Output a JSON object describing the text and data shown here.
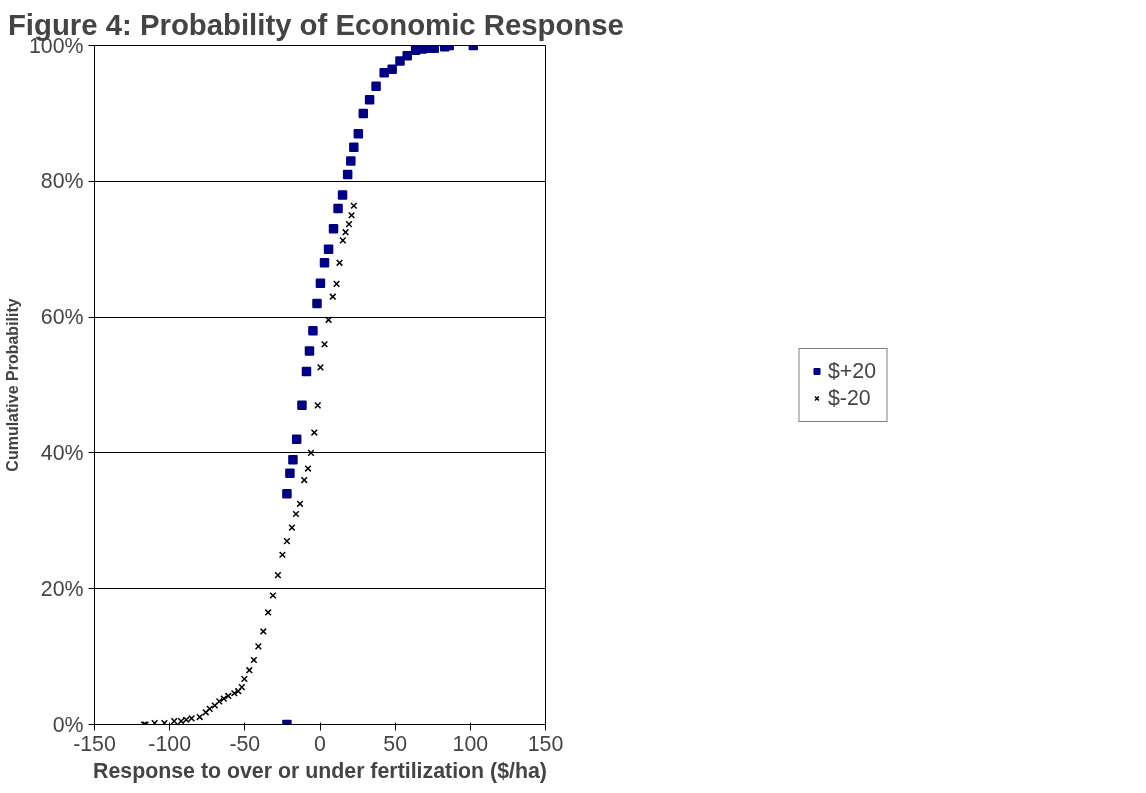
{
  "chart_data": {
    "type": "scatter",
    "title": "Figure 4:  Probability of Economic Response",
    "xlabel": "Response to over or under fertilization ($/ha)",
    "ylabel": "Cumulative Probability",
    "xlim": [
      -150,
      150
    ],
    "xticks": [
      -150,
      -100,
      -50,
      0,
      50,
      100,
      150
    ],
    "ylim": [
      0,
      1
    ],
    "yticks": [
      {
        "value": 0,
        "label": "0%"
      },
      {
        "value": 0.2,
        "label": "20%"
      },
      {
        "value": 0.4,
        "label": "40%"
      },
      {
        "value": 0.6,
        "label": "60%"
      },
      {
        "value": 0.8,
        "label": "80%"
      },
      {
        "value": 1,
        "label": "100%"
      }
    ],
    "grid": "y",
    "legend": "right",
    "series": [
      {
        "name": "$+20",
        "color": "#000080",
        "marker": "square",
        "x": [
          -22,
          -22,
          -20,
          -18,
          -15.5,
          -12,
          -9,
          -7,
          -4.7,
          -2,
          0.3,
          3,
          5.7,
          9,
          12,
          15,
          18.4,
          20.5,
          22.5,
          25.5,
          28.8,
          33,
          37.3,
          42.7,
          48,
          53.2,
          58,
          63.6,
          68,
          73,
          76,
          83,
          86,
          102
        ],
        "values": [
          0,
          0.34,
          0.37,
          0.39,
          0.42,
          0.47,
          0.52,
          0.55,
          0.58,
          0.62,
          0.65,
          0.68,
          0.7,
          0.73,
          0.76,
          0.78,
          0.81,
          0.83,
          0.85,
          0.87,
          0.9,
          0.92,
          0.94,
          0.96,
          0.965,
          0.977,
          0.985,
          0.993,
          0.995,
          0.996,
          0.996,
          0.998,
          1.0,
          1.0
        ]
      },
      {
        "name": "$-20",
        "color": "#000000",
        "marker": "cross",
        "x": [
          -117,
          -116,
          -110,
          -103.5,
          -97,
          -92.4,
          -89,
          -85.4,
          -80,
          -76,
          -73.4,
          -70,
          -67,
          -64,
          -61,
          -57,
          -54.4,
          -52,
          -50.3,
          -47,
          -44,
          -41,
          -37.7,
          -34.5,
          -31.3,
          -28,
          -25,
          -22,
          -18.7,
          -16,
          -13.3,
          -10.5,
          -8,
          -6,
          -3.8,
          -1.5,
          0.3,
          3,
          5.7,
          8.5,
          11,
          13,
          15.2,
          17,
          19.3,
          21,
          22.5
        ],
        "values": [
          0,
          0,
          0.002,
          0.002,
          0.005,
          0.005,
          0.007,
          0.009,
          0.011,
          0.018,
          0.023,
          0.028,
          0.034,
          0.038,
          0.042,
          0.046,
          0.049,
          0.055,
          0.067,
          0.08,
          0.095,
          0.115,
          0.137,
          0.165,
          0.19,
          0.22,
          0.25,
          0.27,
          0.29,
          0.31,
          0.325,
          0.36,
          0.377,
          0.4,
          0.43,
          0.47,
          0.526,
          0.56,
          0.596,
          0.63,
          0.649,
          0.68,
          0.713,
          0.725,
          0.737,
          0.75,
          0.764
        ]
      }
    ]
  }
}
